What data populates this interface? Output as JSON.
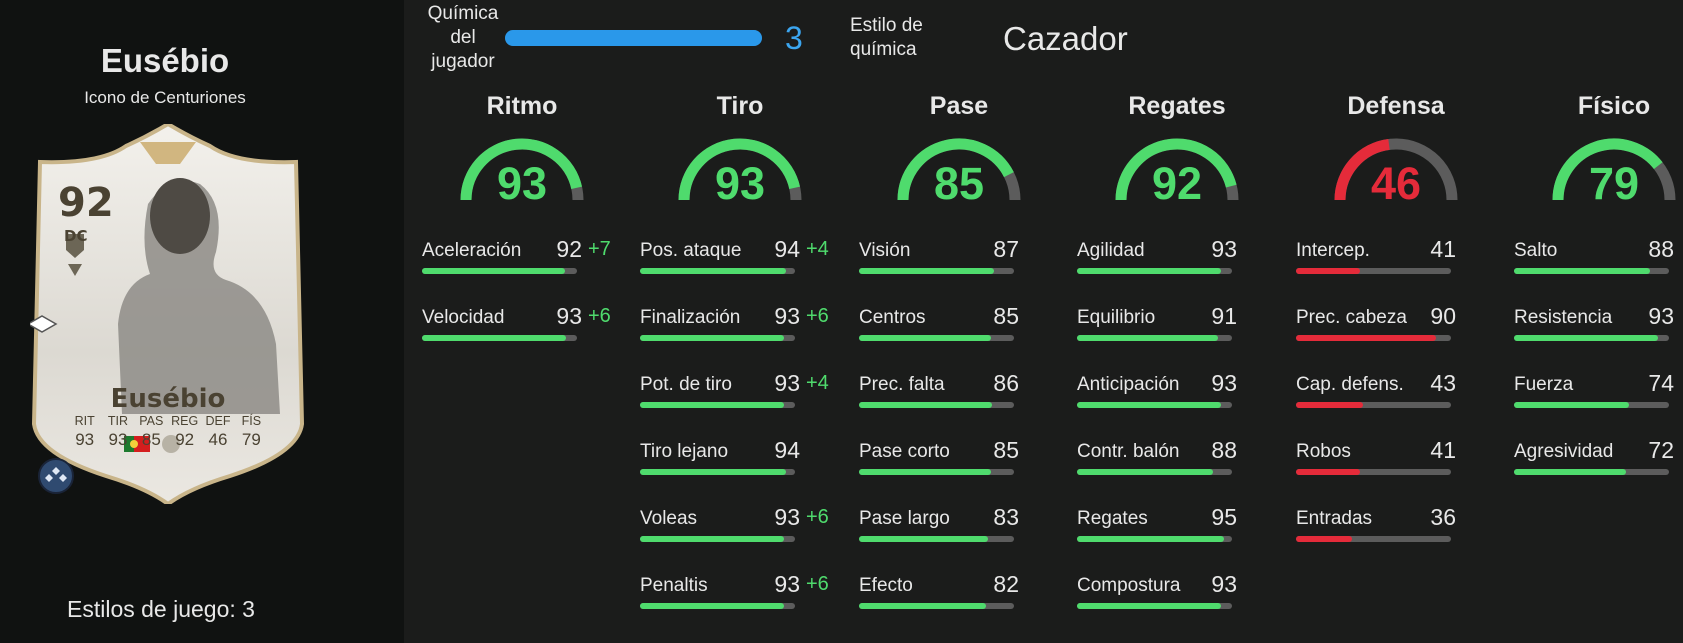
{
  "player": {
    "name": "Eusébio",
    "subtitle": "Icono de Centuriones",
    "playstyles_text": "Estilos de juego: 3"
  },
  "card": {
    "rating": "92",
    "position": "DC",
    "name": "Eusébio",
    "stat_labels": [
      "RIT",
      "TIR",
      "PAS",
      "REG",
      "DEF",
      "FÍS"
    ],
    "stat_values": [
      "93",
      "93",
      "85",
      "92",
      "46",
      "79"
    ]
  },
  "chemistry": {
    "label": "Química del jugador",
    "value": "3",
    "fraction": 1.0,
    "style_label": "Estilo de química",
    "style_value": "Cazador"
  },
  "colors": {
    "green": "#4fdb6d",
    "red": "#e52b3a",
    "blue": "#2a98ea",
    "track": "#5c5c5c"
  },
  "categories": [
    {
      "title": "Ritmo",
      "value": "93",
      "color": "green",
      "stats": [
        {
          "name": "Aceleración",
          "value": "92",
          "boost": "+7"
        },
        {
          "name": "Velocidad",
          "value": "93",
          "boost": "+6"
        }
      ]
    },
    {
      "title": "Tiro",
      "value": "93",
      "color": "green",
      "stats": [
        {
          "name": "Pos. ataque",
          "value": "94",
          "boost": "+4"
        },
        {
          "name": "Finalización",
          "value": "93",
          "boost": "+6"
        },
        {
          "name": "Pot. de tiro",
          "value": "93",
          "boost": "+4"
        },
        {
          "name": "Tiro lejano",
          "value": "94",
          "boost": ""
        },
        {
          "name": "Voleas",
          "value": "93",
          "boost": "+6"
        },
        {
          "name": "Penaltis",
          "value": "93",
          "boost": "+6"
        }
      ]
    },
    {
      "title": "Pase",
      "value": "85",
      "color": "green",
      "stats": [
        {
          "name": "Visión",
          "value": "87",
          "boost": ""
        },
        {
          "name": "Centros",
          "value": "85",
          "boost": ""
        },
        {
          "name": "Prec. falta",
          "value": "86",
          "boost": ""
        },
        {
          "name": "Pase corto",
          "value": "85",
          "boost": ""
        },
        {
          "name": "Pase largo",
          "value": "83",
          "boost": ""
        },
        {
          "name": "Efecto",
          "value": "82",
          "boost": ""
        }
      ]
    },
    {
      "title": "Regates",
      "value": "92",
      "color": "green",
      "stats": [
        {
          "name": "Agilidad",
          "value": "93",
          "boost": ""
        },
        {
          "name": "Equilibrio",
          "value": "91",
          "boost": ""
        },
        {
          "name": "Anticipación",
          "value": "93",
          "boost": ""
        },
        {
          "name": "Contr. balón",
          "value": "88",
          "boost": ""
        },
        {
          "name": "Regates",
          "value": "95",
          "boost": ""
        },
        {
          "name": "Compostura",
          "value": "93",
          "boost": ""
        }
      ]
    },
    {
      "title": "Defensa",
      "value": "46",
      "color": "red",
      "stats": [
        {
          "name": "Intercep.",
          "value": "41",
          "boost": ""
        },
        {
          "name": "Prec. cabeza",
          "value": "90",
          "boost": ""
        },
        {
          "name": "Cap. defens.",
          "value": "43",
          "boost": ""
        },
        {
          "name": "Robos",
          "value": "41",
          "boost": ""
        },
        {
          "name": "Entradas",
          "value": "36",
          "boost": ""
        }
      ]
    },
    {
      "title": "Físico",
      "value": "79",
      "color": "green",
      "stats": [
        {
          "name": "Salto",
          "value": "88",
          "boost": ""
        },
        {
          "name": "Resistencia",
          "value": "93",
          "boost": ""
        },
        {
          "name": "Fuerza",
          "value": "74",
          "boost": ""
        },
        {
          "name": "Agresividad",
          "value": "72",
          "boost": ""
        }
      ]
    }
  ]
}
